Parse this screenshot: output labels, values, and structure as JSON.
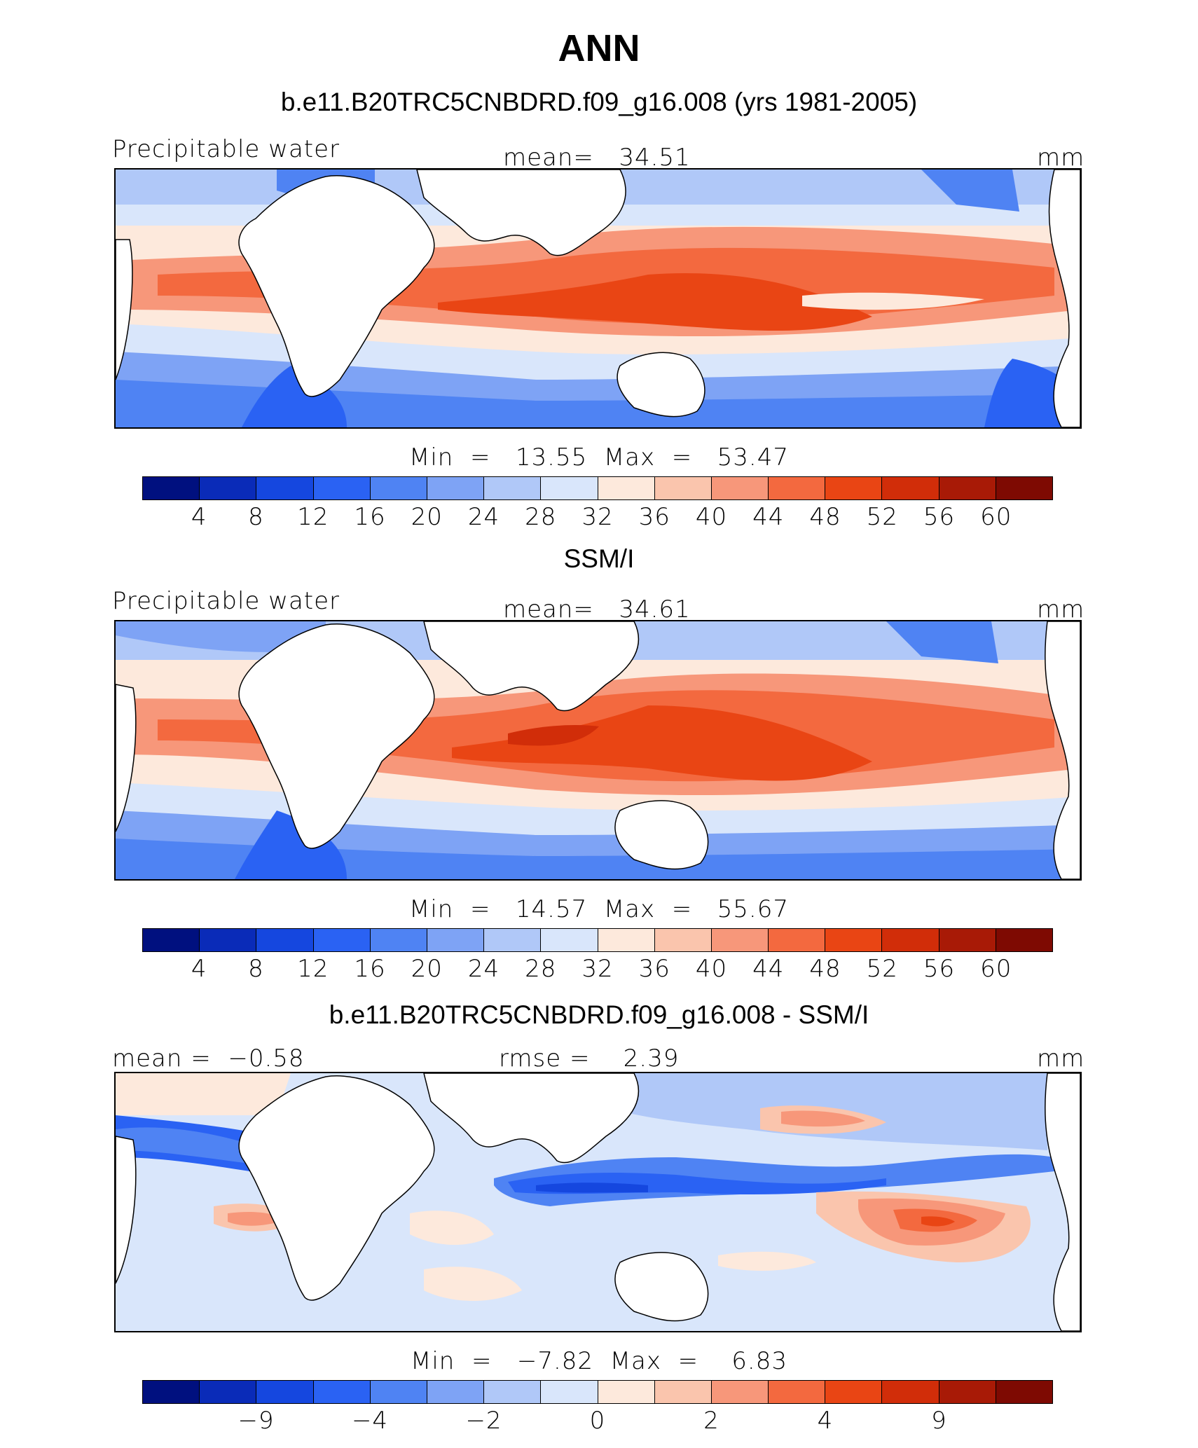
{
  "title": "ANN",
  "panels": [
    {
      "title": "b.e11.B20TRC5CNBDRD.f09_g16.008 (yrs 1981-2005)",
      "left_label": "Precipitable water",
      "center_label": "mean=   34.51",
      "units": "mm",
      "minmax": "Min  =   13.55  Max  =   53.47",
      "colorbar_ticks": [
        "4",
        "8",
        "12",
        "16",
        "20",
        "24",
        "28",
        "32",
        "36",
        "40",
        "44",
        "48",
        "52",
        "56",
        "60"
      ]
    },
    {
      "title": "SSM/I",
      "left_label": "Precipitable water",
      "center_label": "mean=   34.61",
      "units": "mm",
      "minmax": "Min  =   14.57  Max  =   55.67",
      "colorbar_ticks": [
        "4",
        "8",
        "12",
        "16",
        "20",
        "24",
        "28",
        "32",
        "36",
        "40",
        "44",
        "48",
        "52",
        "56",
        "60"
      ]
    },
    {
      "title": "b.e11.B20TRC5CNBDRD.f09_g16.008 - SSM/I",
      "left_label": "mean =  −0.58",
      "center_label": "rmse =    2.39",
      "units": "mm",
      "minmax": "Min  =   −7.82  Max  =    6.83",
      "colorbar_ticks": [
        "−9",
        "",
        "−4",
        "",
        "−2",
        "",
        "0",
        "",
        "2",
        "",
        "4",
        "",
        "9"
      ]
    }
  ],
  "colors": {
    "palette": [
      "#00107f",
      "#0a2bb8",
      "#1547df",
      "#2a62f3",
      "#4f83f3",
      "#7ea3f5",
      "#b0c8f8",
      "#d9e6fb",
      "#fde9dc",
      "#fac5ad",
      "#f7977a",
      "#f3693f",
      "#e94514",
      "#d12d09",
      "#a81a06",
      "#7e0a02"
    ],
    "land": "#ffffff",
    "coast": "#000000"
  }
}
